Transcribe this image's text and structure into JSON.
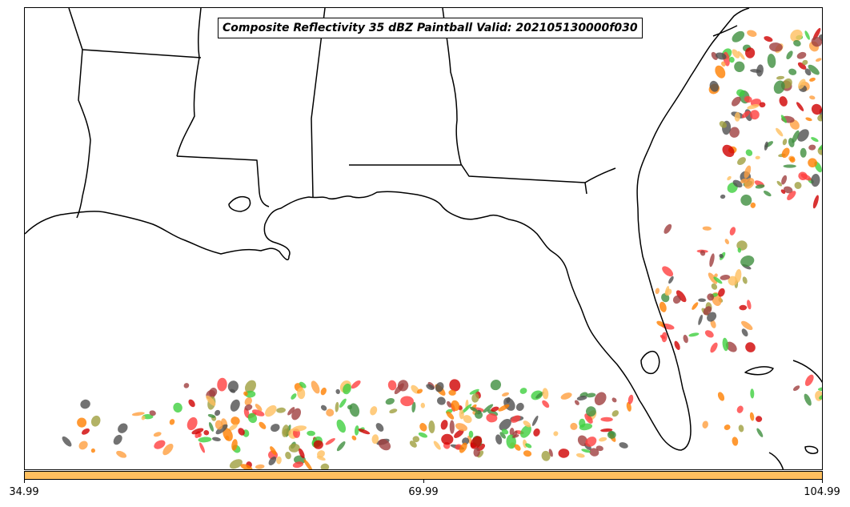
{
  "title": "Composite Reflectivity 35 dBZ Paintball Valid: 202105130000f030",
  "colorbar": {
    "fill_color": "#ffbf5f",
    "ticks": [
      "34.99",
      "69.99",
      "104.99"
    ]
  },
  "palette": [
    "#ff3f3f",
    "#ff9f3f",
    "#ffbf5f",
    "#3fcf3f",
    "#3f8f3f",
    "#9f9f3f",
    "#9f3f3f",
    "#cf0000",
    "#4f4f4f",
    "#ff7f00"
  ]
}
